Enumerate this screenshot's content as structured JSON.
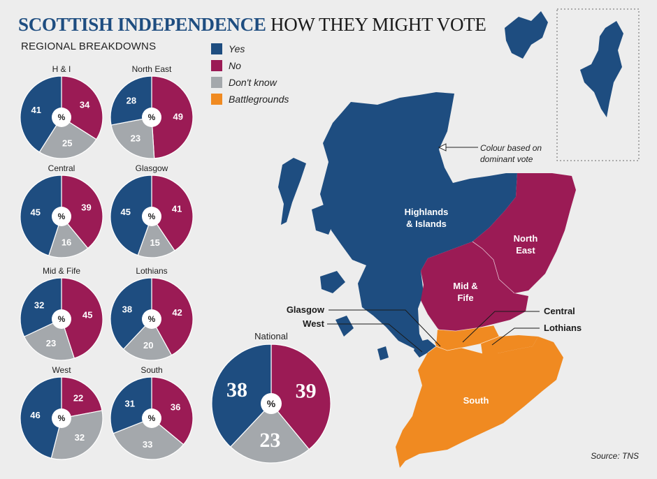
{
  "header": {
    "title_main": "SCOTTISH INDEPENDENCE",
    "title_sub": "HOW THEY MIGHT VOTE",
    "subtitle": "REGIONAL BREAKDOWNS"
  },
  "colors": {
    "yes": "#1e4d80",
    "no": "#9b1b55",
    "dont_know": "#a4a8ac",
    "battleground": "#f08a21"
  },
  "legend": [
    {
      "label": "Yes",
      "color": "#1e4d80"
    },
    {
      "label": "No",
      "color": "#9b1b55"
    },
    {
      "label": "Don't know",
      "color": "#a4a8ac"
    },
    {
      "label": "Battlegrounds",
      "color": "#f08a21"
    }
  ],
  "chart_data": {
    "type": "pie",
    "unit": "%",
    "series_order": [
      "Yes",
      "No",
      "Don't know"
    ],
    "regions": [
      {
        "name": "H & I",
        "yes": 41,
        "no": 34,
        "dont_know": 25
      },
      {
        "name": "North East",
        "yes": 28,
        "no": 49,
        "dont_know": 23
      },
      {
        "name": "Central",
        "yes": 45,
        "no": 39,
        "dont_know": 16
      },
      {
        "name": "Glasgow",
        "yes": 45,
        "no": 41,
        "dont_know": 15
      },
      {
        "name": "Mid & Fife",
        "yes": 32,
        "no": 45,
        "dont_know": 23
      },
      {
        "name": "Lothians",
        "yes": 38,
        "no": 42,
        "dont_know": 20
      },
      {
        "name": "West",
        "yes": 46,
        "no": 22,
        "dont_know": 32
      },
      {
        "name": "South",
        "yes": 31,
        "no": 36,
        "dont_know": 33
      }
    ],
    "national": {
      "name": "National",
      "yes": 38,
      "no": 39,
      "dont_know": 23
    }
  },
  "map": {
    "annotation": "Colour based on dominant vote",
    "regions": [
      {
        "label": "Highlands & Islands",
        "line1": "Highlands",
        "line2": "& Islands",
        "dominant": "yes"
      },
      {
        "label": "North East",
        "line1": "North",
        "line2": "East",
        "dominant": "no"
      },
      {
        "label": "Mid & Fife",
        "line1": "Mid &",
        "line2": "Fife",
        "dominant": "no"
      },
      {
        "label": "South",
        "line1": "South",
        "line2": "",
        "dominant": "battleground"
      },
      {
        "label": "Glasgow",
        "line1": "Glasgow",
        "line2": "",
        "dominant": "yes"
      },
      {
        "label": "West",
        "line1": "West",
        "line2": "",
        "dominant": "yes"
      },
      {
        "label": "Central",
        "line1": "Central",
        "line2": "",
        "dominant": "battleground"
      },
      {
        "label": "Lothians",
        "line1": "Lothians",
        "line2": "",
        "dominant": "battleground"
      }
    ]
  },
  "footer": {
    "source": "Source: TNS"
  }
}
